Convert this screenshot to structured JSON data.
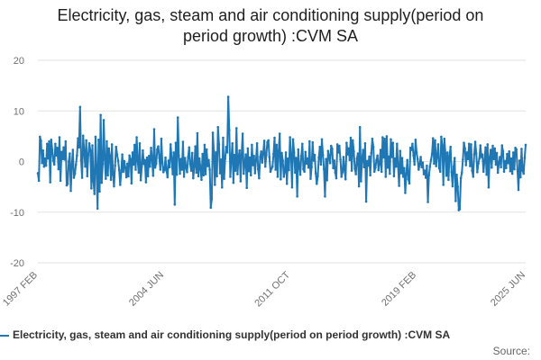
{
  "title": {
    "line1": "Electricity, gas, steam and air conditioning supply(period on",
    "line2": "period growth) :CVM SA"
  },
  "legend": {
    "label": "Electricity, gas, steam and air conditioning supply(period on period growth) :CVM SA"
  },
  "source": "Source:",
  "colors": {
    "series": "#1f77b4",
    "grid": "#e2e2e2",
    "axis_text": "#707070"
  },
  "chart_data": {
    "type": "line",
    "title": "Electricity, gas, steam and air conditioning supply(period on period growth) :CVM SA",
    "xlabel": "",
    "ylabel": "",
    "ylim": [
      -20,
      20
    ],
    "yticks": [
      20,
      10,
      0,
      -10,
      -20
    ],
    "xticks": [
      "1997 FEB",
      "2004 JUN",
      "2011 OCT",
      "2019 FEB",
      "2025 JUN"
    ],
    "x_start": "1997 FEB",
    "x_end": "2025 JUN",
    "x_frequency": "monthly",
    "grid": true,
    "legend_position": "bottom",
    "series": [
      {
        "name": "Electricity, gas, steam and air conditioning supply(period on period growth) :CVM SA",
        "values": [
          -2.3,
          -3.8,
          4.9,
          4.1,
          -0.3,
          2.2,
          -1.0,
          0.6,
          -0.8,
          3.5,
          0.6,
          4.0,
          -4.1,
          4.3,
          2.3,
          0.2,
          -0.6,
          3.5,
          1.2,
          2.7,
          -1.5,
          4.8,
          -3.8,
          1.9,
          0.5,
          2.8,
          0.4,
          4.0,
          -4.7,
          -4.4,
          0.0,
          1.6,
          -5.8,
          -0.8,
          2.3,
          -3.2,
          -2.4,
          -0.6,
          1.2,
          4.6,
          2.8,
          10.8,
          0.3,
          -3.2,
          5.1,
          2.1,
          -1.0,
          4.2,
          -2.9,
          1.3,
          3.6,
          2.2,
          -5.3,
          3.2,
          -3.9,
          -6.4,
          4.9,
          -1.4,
          -9.3,
          4.3,
          -5.9,
          9.2,
          -4.2,
          -0.5,
          8.2,
          0.4,
          -3.4,
          4.0,
          -2.7,
          2.6,
          1.1,
          -3.6,
          3.4,
          -2.6,
          -4.9,
          -0.8,
          2.9,
          1.4,
          0.2,
          -1.7,
          -4.6,
          -2.1,
          1.4,
          -2.0,
          0.1,
          -1.2,
          -3.1,
          -0.4,
          -2.9,
          1.2,
          0.5,
          -4.3,
          1.8,
          -0.6,
          3.3,
          -1.6,
          4.8,
          0.1,
          -2.2,
          3.6,
          -3.7,
          -1.0,
          2.2,
          -0.5,
          0.3,
          -4.1,
          0.8,
          -2.9,
          1.1,
          -1.0,
          2.7,
          0.4,
          -2.8,
          6.4,
          -1.2,
          -0.4,
          2.4,
          3.0,
          0.7,
          -1.6,
          4.5,
          -0.3,
          -2.1,
          -1.6,
          0.8,
          -1.8,
          -3.1,
          0.2,
          -1.1,
          3.4,
          0.6,
          -2.5,
          1.8,
          -8.5,
          3.7,
          -2.6,
          8.7,
          1.2,
          -2.4,
          0.5,
          -1.6,
          3.9,
          -3.0,
          0.7,
          -1.2,
          -2.1,
          0.9,
          2.8,
          -0.5,
          -1.8,
          1.7,
          -3.3,
          -1.0,
          3.0,
          -2.2,
          5.6,
          -2.9,
          0.6,
          -1.3,
          -3.6,
          1.5,
          -2.7,
          3.3,
          -2.5,
          2.4,
          -0.9,
          0.3,
          -1.6,
          -9.1,
          -7.4,
          5.7,
          2.1,
          -4.6,
          1.8,
          -2.9,
          6.8,
          3.4,
          -2.3,
          0.4,
          -5.1,
          4.7,
          -3.4,
          0.6,
          2.9,
          1.8,
          12.8,
          6.2,
          -3.0,
          0.5,
          3.6,
          -4.2,
          1.3,
          -1.8,
          6.6,
          -2.5,
          0.9,
          2.2,
          -3.9,
          1.5,
          5.5,
          -2.4,
          -0.3,
          1.4,
          -5.2,
          2.6,
          -1.9,
          0.8,
          -2.7,
          3.3,
          -0.7,
          1.1,
          -2.3,
          0.4,
          3.6,
          -1.5,
          -3.3,
          0.9,
          2.0,
          -0.2,
          1.7,
          4.1,
          -1.0,
          1.3,
          3.8,
          4.2,
          0.9,
          -2.0,
          -1.4,
          -1.0,
          1.5,
          4.7,
          -1.6,
          3.3,
          -3.0,
          2.1,
          5.5,
          -3.5,
          1.7,
          0.2,
          -3.0,
          -2.0,
          1.8,
          -4.4,
          0.6,
          -1.7,
          4.8,
          1.5,
          -5.1,
          4.4,
          1.8,
          -2.2,
          0.7,
          -6.9,
          2.4,
          -0.8,
          -2.6,
          1.1,
          3.5,
          -1.5,
          -2.0,
          1.9,
          -0.4,
          0.6,
          -1.2,
          4.0,
          -3.4,
          -1.1,
          3.8,
          0.2,
          1.3,
          -2.3,
          -4.4,
          -2.9,
          0.8,
          2.9,
          -0.6,
          4.4,
          1.3,
          -1.5,
          -6.9,
          0.5,
          -3.7,
          2.1,
          1.0,
          -0.3,
          3.1,
          2.5,
          -1.3,
          0.2,
          -2.2,
          -3.3,
          3.4,
          1.8,
          3.1,
          0.4,
          -3.0,
          -2.1,
          0.9,
          -1.7,
          -3.5,
          3.7,
          1.4,
          2.6,
          0.3,
          4.7,
          -1.8,
          4.2,
          2.0,
          -1.4,
          -2.5,
          0.6,
          1.6,
          -4.9,
          6.8,
          -3.9,
          0.4,
          2.3,
          -1.1,
          3.6,
          -7.9,
          0.1,
          -0.8,
          1.0,
          -2.7,
          1.7,
          4.5,
          2.9,
          -2.0,
          -1.2,
          0.3,
          1.2,
          -1.7,
          -0.5,
          2.3,
          -2.0,
          4.8,
          0.8,
          4.5,
          -3.0,
          5.0,
          -1.2,
          1.0,
          -2.4,
          4.4,
          0.9,
          3.7,
          -2.9,
          0.6,
          -1.0,
          3.5,
          -0.9,
          -4.8,
          2.1,
          -2.3,
          0.7,
          -3.0,
          -1.3,
          -6.2,
          -2.5,
          0.3,
          -3.5,
          -4.3,
          2.7,
          2.3,
          3.5,
          1.2,
          -0.6,
          4.3,
          1.8,
          0.5,
          -1.6,
          -0.6,
          0.9,
          -1.1,
          -0.2,
          -2.5,
          -1.8,
          -3.2,
          -0.8,
          -8.0,
          -2.7,
          -1.0,
          0.3,
          1.5,
          4.6,
          -0.4,
          4.2,
          -0.9,
          1.1,
          3.4,
          -1.3,
          -2.0,
          4.9,
          3.2,
          -4.6,
          4.5,
          1.6,
          -2.8,
          1.8,
          -3.6,
          1.2,
          2.9,
          -2.1,
          -4.9,
          -1.0,
          0.7,
          -7.8,
          -2.6,
          -5.0,
          -9.6,
          -9.4,
          -3.3,
          -2.2,
          0.4,
          3.7,
          2.6,
          -0.7,
          1.8,
          0.5,
          3.5,
          -0.9,
          3.4,
          -1.8,
          -3.0,
          1.4,
          3.9,
          1.6,
          -2.1,
          -0.4,
          0.6,
          3.2,
          0.9,
          1.4,
          -2.0,
          0.2,
          2.8,
          -2.6,
          3.4,
          -5.1,
          0.8,
          2.3,
          -1.2,
          3.1,
          0.5,
          2.6,
          -0.6,
          1.7,
          -2.2,
          -0.3,
          0.9,
          -1.1,
          3.2,
          2.0,
          -2.0,
          0.1,
          -1.3,
          1.5,
          -0.3,
          2.0,
          -1.9,
          0.6,
          -2.4,
          1.8,
          -1.5,
          2.7,
          2.4,
          -1.6,
          -5.6,
          0.2,
          -3.1,
          2.5,
          -1.8,
          -2.4,
          0.7,
          3.3
        ]
      }
    ]
  }
}
